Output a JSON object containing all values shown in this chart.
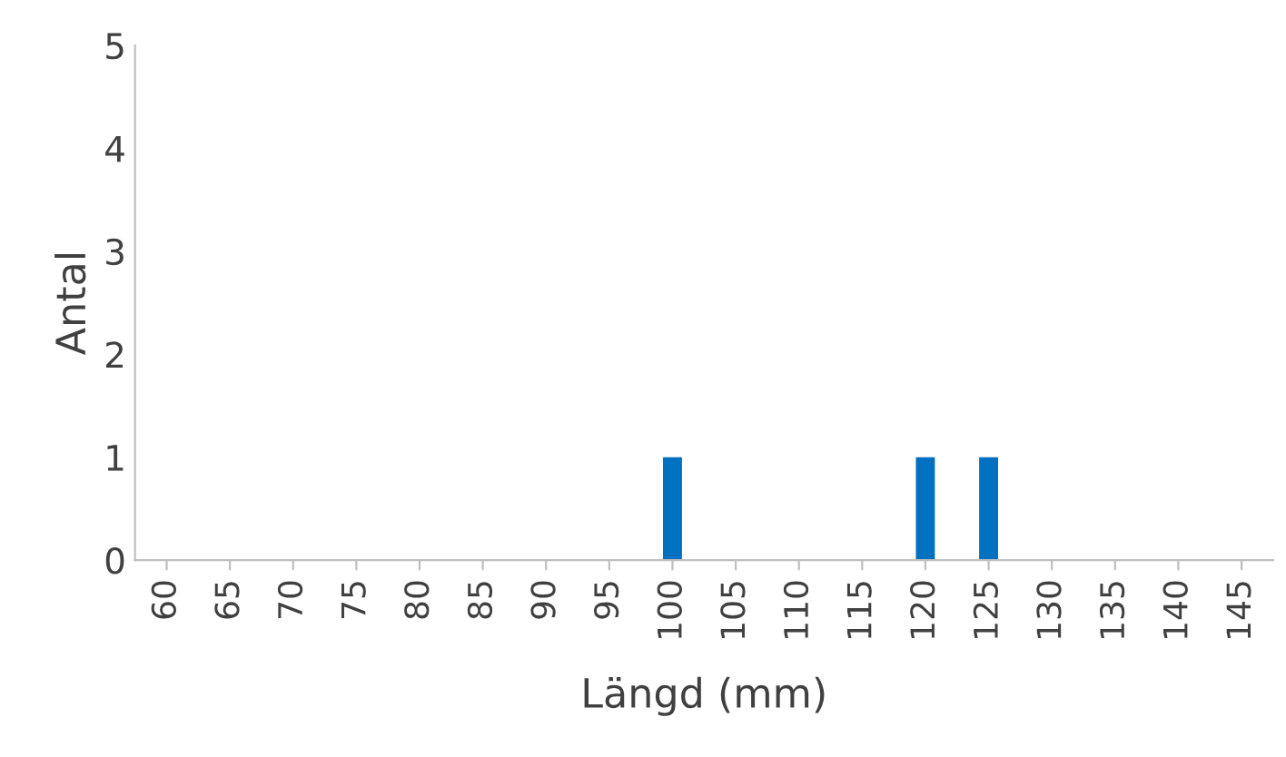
{
  "chart_data": {
    "type": "bar",
    "xlabel": "Längd (mm)",
    "ylabel": "Antal",
    "categories": [
      "60",
      "65",
      "70",
      "75",
      "80",
      "85",
      "90",
      "95",
      "100",
      "105",
      "110",
      "115",
      "120",
      "125",
      "130",
      "135",
      "140",
      "145"
    ],
    "values": [
      0,
      0,
      0,
      0,
      0,
      0,
      0,
      0,
      1,
      0,
      0,
      0,
      1,
      1,
      0,
      0,
      0,
      0
    ],
    "color": "#0070c0",
    "ylim": [
      0,
      5
    ],
    "yticks": [
      0,
      1,
      2,
      3,
      4,
      5
    ],
    "grid": false
  }
}
